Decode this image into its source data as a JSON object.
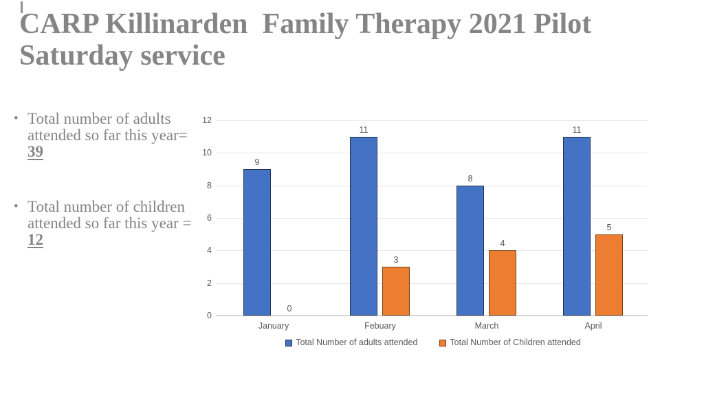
{
  "slide": {
    "title": {
      "line1": "CARP Killinarden  Family Therapy 2021 Pilot",
      "line2": "Saturday service"
    },
    "bullets": [
      {
        "line1": "Total number of adults",
        "line2": "attended so far this year=",
        "value": "39"
      },
      {
        "line1": "Total number of children",
        "line2": "attended so far this year =",
        "value": "12"
      }
    ]
  },
  "chart_data": {
    "type": "bar",
    "title": "",
    "xlabel": "",
    "ylabel": "",
    "categories": [
      "January",
      "Febuary",
      "March",
      "April"
    ],
    "series": [
      {
        "key": "adults",
        "name": "Total Number of adults attended",
        "values": [
          9,
          11,
          8,
          11
        ],
        "fill": "#4472C4",
        "border": "#23344F"
      },
      {
        "key": "children",
        "name": "Total Number of Children attended",
        "values": [
          0,
          3,
          4,
          5
        ],
        "fill": "#ED7D31",
        "border": "#7A4112"
      }
    ],
    "ylim": [
      0,
      12
    ],
    "ytick_step": 2,
    "grid": true,
    "data_labels": true,
    "legend_position": "bottom"
  }
}
